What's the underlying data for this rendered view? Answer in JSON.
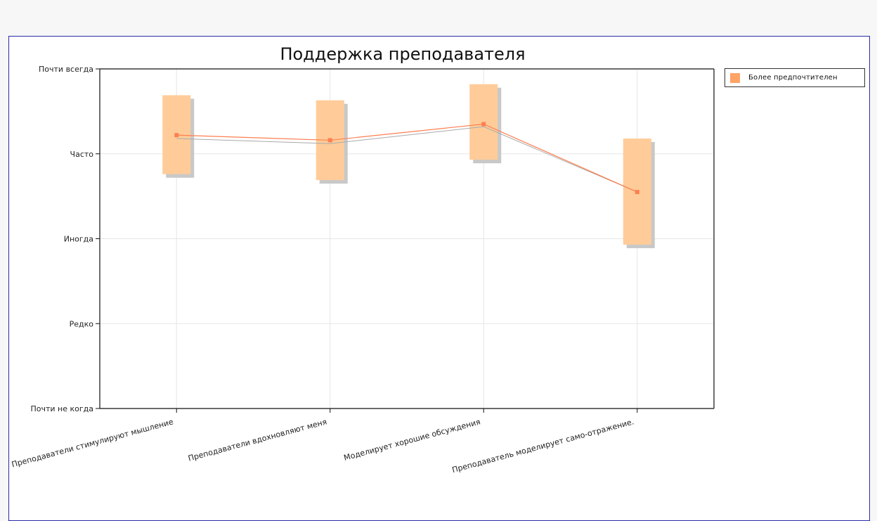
{
  "chart_data": {
    "type": "line",
    "title": "Поддержка преподавателя",
    "categories": [
      "Преподаватели стимулируют мышление",
      "Преподаватели вдохновляют меня",
      "Моделирует хорошие обсуждения",
      "Преподаватель моделирует само-отражение."
    ],
    "y_tick_labels": [
      "Почти не когда",
      "Редко",
      "Иногда",
      "Часто",
      "Почти всегда"
    ],
    "ylim": [
      1,
      5
    ],
    "series": [
      {
        "name": "Более предпочтителен",
        "values": [
          4.22,
          4.16,
          4.35,
          3.55
        ],
        "range_low": [
          3.76,
          3.69,
          3.93,
          2.93
        ],
        "range_high": [
          4.69,
          4.63,
          4.82,
          4.18
        ]
      }
    ],
    "secondary_line_values": [
      4.18,
      4.12,
      4.32,
      3.55
    ],
    "grid": true,
    "legend_position": "right",
    "colors": {
      "box": "#ffcc99",
      "box_shadow": "#c8c8c8",
      "line": "#ff7f50",
      "secondary_line": "#a9a9a9",
      "legend_swatch": "#ffa366",
      "frame": "#2a2aa8",
      "grid": "#e6e6e6"
    }
  }
}
